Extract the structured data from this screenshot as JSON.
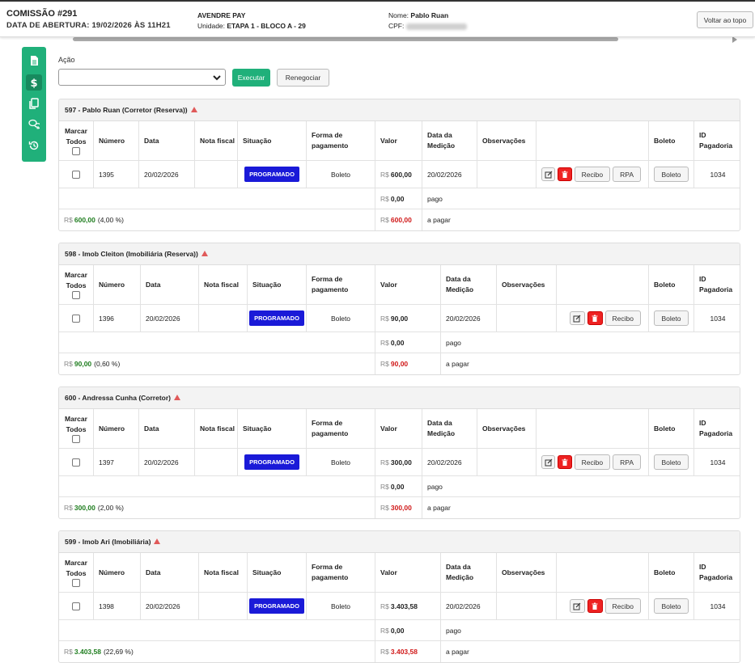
{
  "header": {
    "title": "COMISSÃO #291",
    "subtitle": "DATA DE ABERTURA: 19/02/2026 ÀS 11H21",
    "company": "AVENDRE PAY",
    "unit_label": "Unidade: ",
    "unit_value": "ETAPA 1 - BLOCO A - 29",
    "name_label": "Nome: ",
    "name_value": "Pablo Ruan",
    "cpf_label": "CPF: ",
    "top_button": "Voltar ao topo"
  },
  "sidebar": {
    "icons": [
      "document-icon",
      "dollar-icon",
      "copy-icon",
      "chat-icon",
      "history-icon"
    ],
    "active_index": 1,
    "color": "#20b07a"
  },
  "action": {
    "label": "Ação",
    "select_value": "",
    "execute_label": "Executar",
    "renegotiate_label": "Renegociar"
  },
  "columns": {
    "marcar": "Marcar Todos",
    "numero": "Número",
    "data": "Data",
    "nota": "Nota fiscal",
    "situacao": "Situação",
    "forma": "Forma de pagamento",
    "valor": "Valor",
    "data_medicao": "Data da Medição",
    "observacoes": "Observações",
    "boleto": "Boleto",
    "id_pagadoria": "ID Pagadoria"
  },
  "labels": {
    "currency": "R$",
    "pago": "pago",
    "a_pagar": "a pagar",
    "edit_btn": "",
    "recibo": "Recibo",
    "rpa": "RPA",
    "boleto": "Boleto"
  },
  "cards": [
    {
      "title": "597 - Pablo Ruan (Corretor (Reserva))",
      "numero": "1395",
      "data": "20/02/2026",
      "nota": "",
      "situacao": "PROGRAMADO",
      "forma": "Boleto",
      "valor": "600,00",
      "data_medicao": "20/02/2026",
      "observacoes": "",
      "has_rpa": true,
      "id_pagadoria": "1034",
      "pago_valor": "0,00",
      "total_valor": "600,00",
      "total_pct": "(4,00 %)",
      "apagar_valor": "600,00"
    },
    {
      "title": "598 - Imob Cleiton (Imobiliária (Reserva))",
      "numero": "1396",
      "data": "20/02/2026",
      "nota": "",
      "situacao": "PROGRAMADO",
      "forma": "Boleto",
      "valor": "90,00",
      "data_medicao": "20/02/2026",
      "observacoes": "",
      "has_rpa": false,
      "id_pagadoria": "1034",
      "pago_valor": "0,00",
      "total_valor": "90,00",
      "total_pct": "(0,60 %)",
      "apagar_valor": "90,00"
    },
    {
      "title": "600 - Andressa Cunha (Corretor)",
      "numero": "1397",
      "data": "20/02/2026",
      "nota": "",
      "situacao": "PROGRAMADO",
      "forma": "Boleto",
      "valor": "300,00",
      "data_medicao": "20/02/2026",
      "observacoes": "",
      "has_rpa": true,
      "id_pagadoria": "1034",
      "pago_valor": "0,00",
      "total_valor": "300,00",
      "total_pct": "(2,00 %)",
      "apagar_valor": "300,00"
    },
    {
      "title": "599 - Imob Ari (Imobiliária)",
      "numero": "1398",
      "data": "20/02/2026",
      "nota": "",
      "situacao": "PROGRAMADO",
      "forma": "Boleto",
      "valor": "3.403,58",
      "data_medicao": "20/02/2026",
      "observacoes": "",
      "has_rpa": false,
      "id_pagadoria": "1034",
      "pago_valor": "0,00",
      "total_valor": "3.403,58",
      "total_pct": "(22,69 %)",
      "apagar_valor": "3.403,58"
    }
  ],
  "colors": {
    "accent": "#20b07a",
    "badge": "#1a1ad8",
    "positive": "#1e7d1e",
    "negative": "#d01818"
  }
}
